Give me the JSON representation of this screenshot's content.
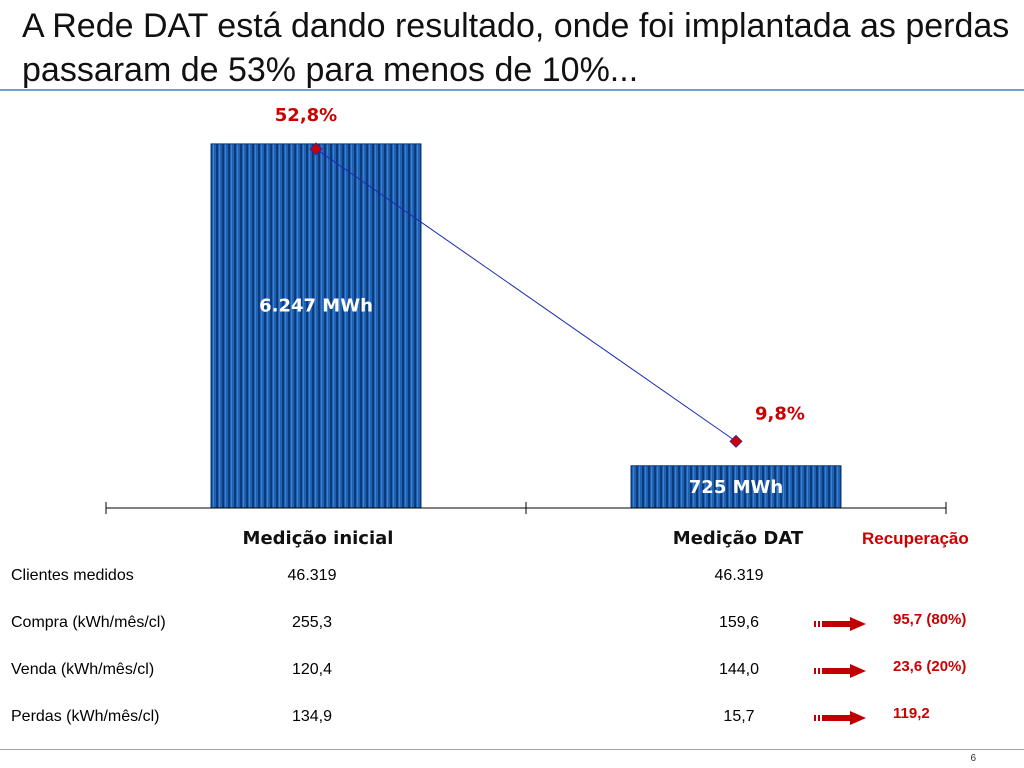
{
  "title": "A Rede DAT está dando resultado, onde foi implantada as perdas passaram de 53% para menos de 10%...",
  "page_number": "6",
  "chart_data": {
    "type": "bar",
    "categories": [
      "Medição inicial",
      "Medição DAT"
    ],
    "values": [
      6247,
      725
    ],
    "value_labels": [
      "6.247 MWh",
      "725 MWh"
    ],
    "line_series": {
      "values": [
        52.8,
        9.8
      ],
      "labels": [
        "52,8%",
        "9,8%"
      ]
    },
    "ylim": [
      0,
      7000
    ],
    "line_ylim": [
      0,
      60
    ],
    "colors": {
      "bar": "#1f62b4",
      "bar_dark": "#0d3a78",
      "line": "#1a2bb0",
      "marker": "#cc0000",
      "label": "#cc0000"
    }
  },
  "recuperacao_label": "Recuperação",
  "table": {
    "rows": [
      {
        "label": "Clientes medidos",
        "inicial": "46.319",
        "dat": "46.319",
        "gain": ""
      },
      {
        "label": "Compra (kWh/mês/cl)",
        "inicial": "255,3",
        "dat": "159,6",
        "gain": "95,7 (80%)"
      },
      {
        "label": "Venda (kWh/mês/cl)",
        "inicial": "120,4",
        "dat": "144,0",
        "gain": "23,6 (20%)"
      },
      {
        "label": "Perdas (kWh/mês/cl)",
        "inicial": "134,9",
        "dat": "15,7",
        "gain": "119,2"
      }
    ]
  },
  "arrow_icon": "right-arrow-icon"
}
